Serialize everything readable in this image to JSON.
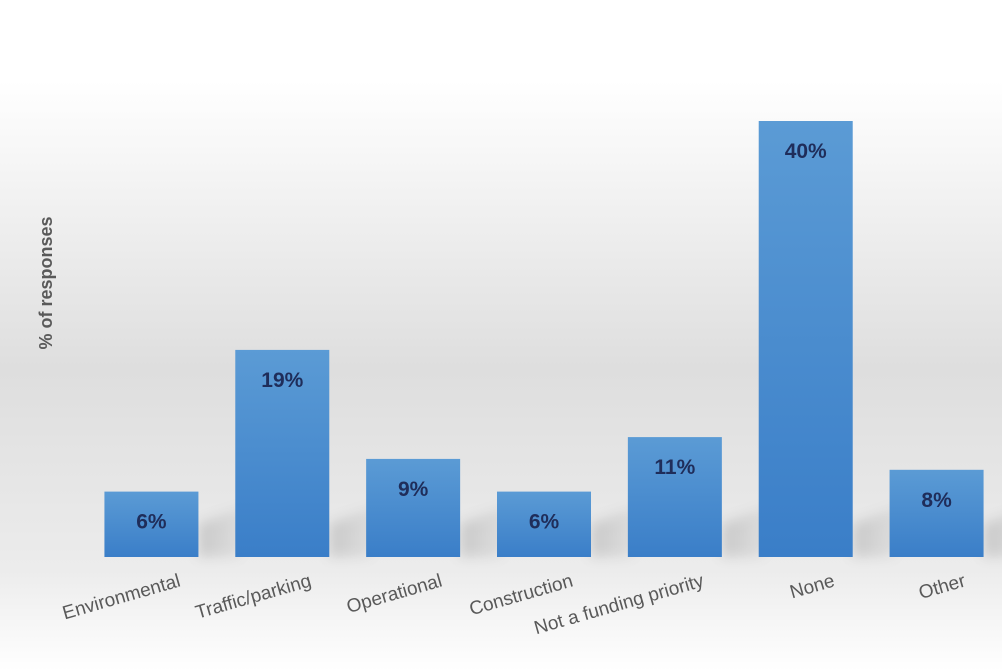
{
  "chart_data": {
    "type": "bar",
    "title": "",
    "xlabel": "",
    "ylabel": "% of responses",
    "categories": [
      "Environmental",
      "Traffic/parking",
      "Operational",
      "Construction",
      "Not a funding priority",
      "None",
      "Other"
    ],
    "values": [
      6,
      19,
      9,
      6,
      11,
      40,
      8
    ],
    "value_labels": [
      "6%",
      "19%",
      "9%",
      "6%",
      "11%",
      "40%",
      "8%"
    ],
    "ylim": [
      0,
      42
    ],
    "grid": false,
    "legend": "none",
    "bar_color": "#4a8fd6",
    "bar_color_light": "#5b9bd5",
    "bar_color_dark": "#3a7ec8",
    "label_color": "#1f2d5a"
  }
}
